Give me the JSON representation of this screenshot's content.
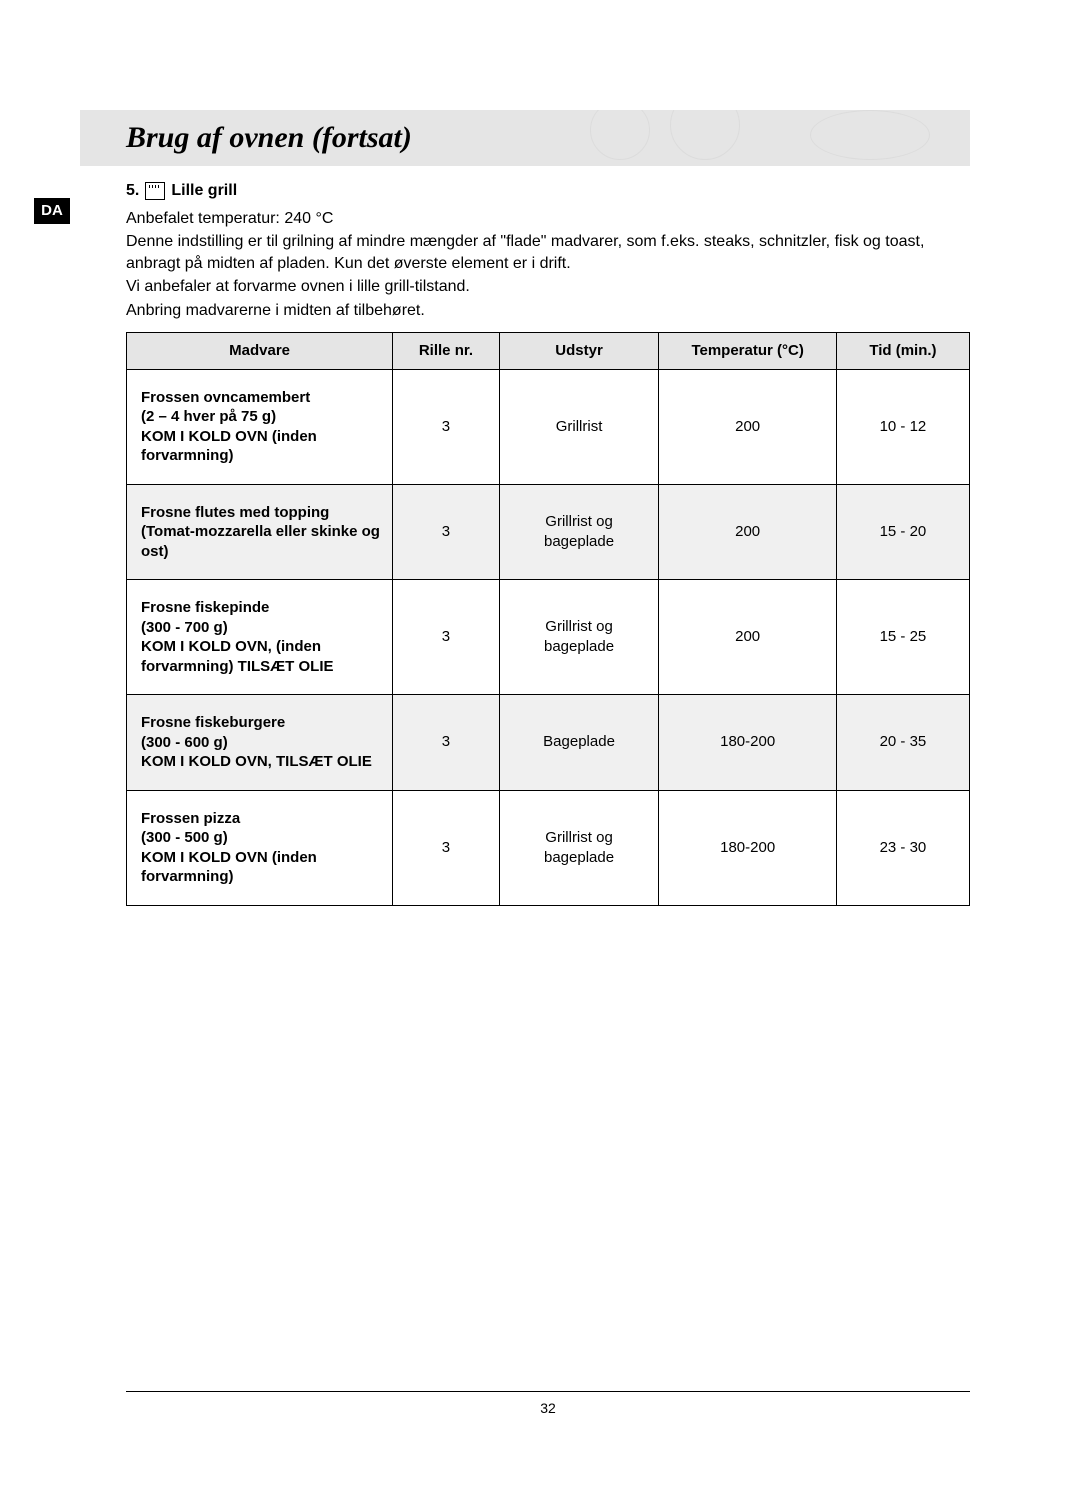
{
  "header": {
    "title": "Brug af ovnen (fortsat)"
  },
  "lang_tab": "DA",
  "section": {
    "number": "5.",
    "label": "Lille grill",
    "recommended_temp": "Anbefalet temperatur: 240 °C",
    "desc1": "Denne indstilling er til grilning af mindre mængder af \"flade\" madvarer, som f.eks. steaks, schnitzler, fisk og toast, anbragt på midten af pladen. Kun det øverste element er i drift.",
    "desc2": "Vi anbefaler at forvarme ovnen i lille grill-tilstand.",
    "desc3": "Anbring madvarerne i midten af tilbehøret."
  },
  "table": {
    "columns": [
      "Madvare",
      "Rille nr.",
      "Udstyr",
      "Temperatur (°C)",
      "Tid (min.)"
    ],
    "rows": [
      {
        "food": "Frossen ovncamembert\n(2 – 4 hver på 75 g)\nKOM I KOLD OVN (inden forvarmning)",
        "rille": "3",
        "udstyr": "Grillrist",
        "temp": "200",
        "tid": "10 - 12"
      },
      {
        "food": "Frosne flutes med topping (Tomat-mozzarella eller skinke og ost)",
        "rille": "3",
        "udstyr": "Grillrist og bageplade",
        "temp": "200",
        "tid": "15 - 20"
      },
      {
        "food": "Frosne fiskepinde\n(300 - 700 g)\nKOM I KOLD OVN, (inden forvarmning) TILSÆT OLIE",
        "rille": "3",
        "udstyr": "Grillrist og bageplade",
        "temp": "200",
        "tid": "15 - 25"
      },
      {
        "food": "Frosne fiskeburgere\n(300 - 600 g)\nKOM I KOLD OVN, TILSÆT OLIE",
        "rille": "3",
        "udstyr": "Bageplade",
        "temp": "180-200",
        "tid": "20 - 35"
      },
      {
        "food": "Frossen pizza\n(300 - 500 g)\nKOM I KOLD OVN (inden forvarmning)",
        "rille": "3",
        "udstyr": "Grillrist og bageplade",
        "temp": "180-200",
        "tid": "23 - 30"
      }
    ]
  },
  "page_number": "32"
}
